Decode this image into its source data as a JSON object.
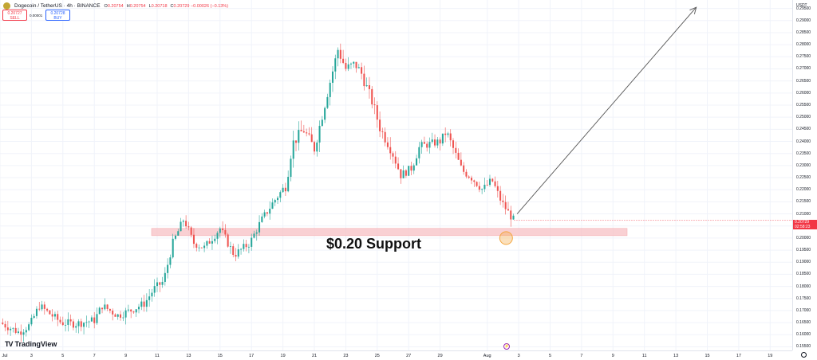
{
  "header": {
    "symbol": "Dogecoin / TetherUS · 4h · BINANCE",
    "ohlc": [
      {
        "label": "O",
        "value": "0.20754"
      },
      {
        "label": "H",
        "value": "0.20754"
      },
      {
        "label": "L",
        "value": "0.20718"
      },
      {
        "label": "C",
        "value": "0.20729 −0.00026 (−0.13%)"
      }
    ]
  },
  "trade": {
    "sell_price": "0.20727",
    "sell_label": "SELL",
    "spread": "0.00001",
    "buy_price": "0.20728",
    "buy_label": "BUY"
  },
  "price_axis": {
    "currency": "USDT",
    "current_price": "0.20729",
    "countdown": "02:58:23"
  },
  "logo": {
    "text": "TradingView"
  },
  "annotation": {
    "support_text": "$0.20 Support"
  },
  "event_icon": "⚡",
  "colors": {
    "up": "#26a69a",
    "down": "#ef5350",
    "support_zone": "#f8c8cc",
    "marker": "#f4a640"
  },
  "chart_data": {
    "type": "candlestick",
    "title": "Dogecoin / TetherUS · 4h · BINANCE",
    "ylim": [
      0.1535,
      0.2985
    ],
    "yticks": [
      "0.29500",
      "0.29000",
      "0.28500",
      "0.28000",
      "0.27500",
      "0.27000",
      "0.26500",
      "0.26000",
      "0.25500",
      "0.25000",
      "0.24500",
      "0.24000",
      "0.23500",
      "0.23000",
      "0.22500",
      "0.22000",
      "0.21500",
      "0.21000",
      "0.20500",
      "0.20000",
      "0.19500",
      "0.19000",
      "0.18500",
      "0.18000",
      "0.17500",
      "0.17000",
      "0.16500",
      "0.16000",
      "0.15500"
    ],
    "xticks": [
      {
        "label": "Jul",
        "day": 0
      },
      {
        "label": "3",
        "day": 2
      },
      {
        "label": "5",
        "day": 4
      },
      {
        "label": "7",
        "day": 6
      },
      {
        "label": "9",
        "day": 8
      },
      {
        "label": "11",
        "day": 10
      },
      {
        "label": "13",
        "day": 12
      },
      {
        "label": "15",
        "day": 14
      },
      {
        "label": "17",
        "day": 16
      },
      {
        "label": "19",
        "day": 18
      },
      {
        "label": "21",
        "day": 20
      },
      {
        "label": "23",
        "day": 22
      },
      {
        "label": "25",
        "day": 24
      },
      {
        "label": "27",
        "day": 26
      },
      {
        "label": "29",
        "day": 28
      },
      {
        "label": "Aug",
        "day": 31
      },
      {
        "label": "3",
        "day": 33
      },
      {
        "label": "5",
        "day": 35
      },
      {
        "label": "7",
        "day": 37
      },
      {
        "label": "9",
        "day": 39
      },
      {
        "label": "11",
        "day": 41
      },
      {
        "label": "13",
        "day": 43
      },
      {
        "label": "15",
        "day": 45
      },
      {
        "label": "17",
        "day": 47
      },
      {
        "label": "19",
        "day": 49
      }
    ],
    "series": [
      {
        "keypoints": [
          [
            0,
            0.165
          ],
          [
            0.6,
            0.163
          ],
          [
            1.2,
            0.161
          ],
          [
            1.9,
            0.164
          ],
          [
            2.5,
            0.172
          ],
          [
            3.1,
            0.169
          ],
          [
            3.9,
            0.165
          ],
          [
            4.8,
            0.1645
          ],
          [
            6.0,
            0.166
          ],
          [
            6.5,
            0.172
          ],
          [
            7.5,
            0.168
          ],
          [
            8.3,
            0.17
          ],
          [
            9.2,
            0.173
          ],
          [
            9.8,
            0.179
          ],
          [
            10.4,
            0.182
          ],
          [
            11.0,
            0.198
          ],
          [
            11.7,
            0.208
          ],
          [
            12.3,
            0.198
          ],
          [
            13.0,
            0.196
          ],
          [
            14.0,
            0.204
          ],
          [
            14.9,
            0.193
          ],
          [
            15.9,
            0.198
          ],
          [
            16.6,
            0.207
          ],
          [
            17.4,
            0.215
          ],
          [
            18.2,
            0.222
          ],
          [
            18.6,
            0.239
          ],
          [
            19.3,
            0.245
          ],
          [
            20.0,
            0.237
          ],
          [
            20.9,
            0.262
          ],
          [
            21.5,
            0.278
          ],
          [
            22.0,
            0.27
          ],
          [
            22.6,
            0.272
          ],
          [
            23.0,
            0.268
          ],
          [
            23.7,
            0.256
          ],
          [
            24.2,
            0.245
          ],
          [
            24.8,
            0.238
          ],
          [
            25.5,
            0.226
          ],
          [
            26.2,
            0.229
          ],
          [
            26.7,
            0.238
          ],
          [
            27.4,
            0.239
          ],
          [
            28.0,
            0.24
          ],
          [
            28.4,
            0.244
          ],
          [
            28.9,
            0.236
          ],
          [
            29.4,
            0.228
          ],
          [
            30.0,
            0.225
          ],
          [
            30.7,
            0.22
          ],
          [
            31.3,
            0.224
          ],
          [
            31.9,
            0.215
          ],
          [
            32.4,
            0.21
          ],
          [
            32.7,
            0.2073
          ]
        ]
      }
    ],
    "support_level": 0.2025,
    "support_zone": [
      0.201,
      0.204
    ],
    "arrow": {
      "from": [
        32.9,
        0.21
      ],
      "to": [
        44.3,
        0.2955
      ]
    },
    "marker": {
      "day": 32.2,
      "price": 0.2
    }
  }
}
